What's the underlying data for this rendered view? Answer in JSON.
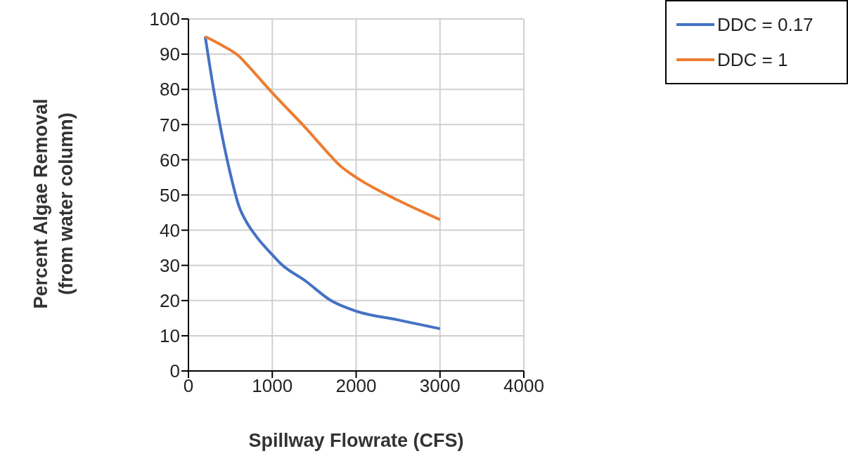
{
  "chart_data": {
    "type": "line",
    "xlabel": "Spillway Flowrate (CFS)",
    "ylabel": "Percent Algae Removal\n(from water column)",
    "series": [
      {
        "name": "DDC = 0.17",
        "color": "#4472c4",
        "x": [
          200,
          300,
          400,
          500,
          600,
          700,
          800,
          1000,
          1100,
          1400,
          1700,
          2000,
          2500,
          3000
        ],
        "values": [
          95,
          80,
          67,
          56,
          47,
          42,
          38.5,
          33,
          30.5,
          25.5,
          20,
          17,
          14.5,
          12
        ]
      },
      {
        "name": "DDC = 1",
        "color": "#ed7d31",
        "x": [
          200,
          400,
          600,
          700,
          1000,
          1400,
          1700,
          1800,
          2000,
          2500,
          3000
        ],
        "values": [
          95,
          92.5,
          89.5,
          87,
          79,
          69,
          61,
          58.5,
          55,
          48.5,
          43
        ]
      }
    ],
    "xlim": [
      0,
      4000
    ],
    "xticks": [
      0,
      1000,
      2000,
      3000,
      4000
    ],
    "ylim": [
      0,
      100
    ],
    "yticks": [
      0,
      10,
      20,
      30,
      40,
      50,
      60,
      70,
      80,
      90,
      100
    ],
    "grid": true,
    "legend": "top right",
    "marker": "none",
    "line_style": "solid"
  }
}
